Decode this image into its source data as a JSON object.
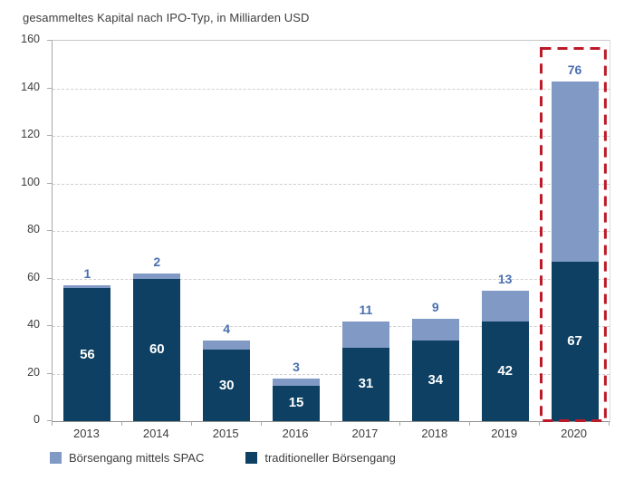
{
  "title": "gesammeltes Kapital nach IPO-Typ, in Milliarden USD",
  "colors": {
    "traditional": "#0d4063",
    "spac": "#8099c5",
    "highlight": "#bc1a28",
    "top_label_blue": "#4a6fb0",
    "grid": "#cfcfcf",
    "axis": "#a8a8a8",
    "text": "#3d3d3d"
  },
  "chart_data": {
    "type": "bar",
    "stacked": true,
    "title": "gesammeltes Kapital nach IPO-Typ, in Milliarden USD",
    "categories": [
      "2013",
      "2014",
      "2015",
      "2016",
      "2017",
      "2018",
      "2019",
      "2020"
    ],
    "series": [
      {
        "name": "traditioneller Börsengang",
        "color_key": "traditional",
        "values": [
          56,
          60,
          30,
          15,
          31,
          34,
          42,
          67
        ]
      },
      {
        "name": "Börsengang mittels SPAC",
        "color_key": "spac",
        "values": [
          1,
          2,
          4,
          3,
          11,
          9,
          13,
          76
        ]
      }
    ],
    "xlabel": "",
    "ylabel": "",
    "ylim": [
      0,
      160
    ],
    "ytick_step": 20,
    "grid": "horizontal-dashed",
    "legend_position": "bottom",
    "highlighted_category": "2020"
  },
  "legend": {
    "items": [
      {
        "label": "Börsengang mittels SPAC",
        "color_key": "spac"
      },
      {
        "label": "traditioneller Börsengang",
        "color_key": "traditional"
      }
    ]
  }
}
